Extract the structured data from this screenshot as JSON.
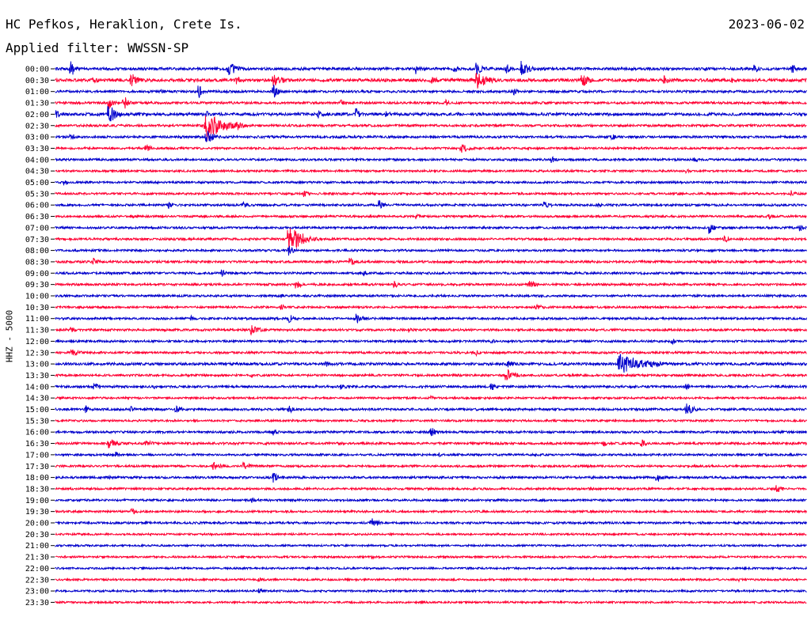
{
  "header": {
    "station": "HC Pefkos, Heraklion, Crete Is.",
    "date": "2023-06-02",
    "filter": "Applied filter: WWSSN-SP"
  },
  "chart_data": {
    "type": "line",
    "title": "HC Pefkos, Heraklion, Crete Is.",
    "ylabel": "HHZ - 5000",
    "colors": [
      "#0000cc",
      "#ff0033"
    ],
    "row_labels": [
      "00:00",
      "00:30",
      "01:00",
      "01:30",
      "02:00",
      "02:30",
      "03:00",
      "03:30",
      "04:00",
      "04:30",
      "05:00",
      "05:30",
      "06:00",
      "06:30",
      "07:00",
      "07:30",
      "08:00",
      "08:30",
      "09:00",
      "09:30",
      "10:00",
      "10:30",
      "11:00",
      "11:30",
      "12:00",
      "12:30",
      "13:00",
      "13:30",
      "14:00",
      "14:30",
      "15:00",
      "15:30",
      "16:00",
      "16:30",
      "17:00",
      "17:30",
      "18:00",
      "18:30",
      "19:00",
      "19:30",
      "20:00",
      "20:30",
      "21:00",
      "21:30",
      "22:00",
      "22:30",
      "23:00",
      "23:30"
    ],
    "rows": [
      {
        "noise": 0.22,
        "events": [
          [
            0.02,
            12,
            2
          ],
          [
            0.23,
            12,
            3
          ],
          [
            0.48,
            7,
            2
          ],
          [
            0.53,
            6,
            2
          ],
          [
            0.56,
            8,
            3
          ],
          [
            0.6,
            8,
            2
          ],
          [
            0.62,
            12,
            3
          ],
          [
            0.93,
            7,
            2
          ],
          [
            0.98,
            7,
            2
          ]
        ]
      },
      {
        "noise": 0.3,
        "events": [
          [
            0.05,
            5,
            3
          ],
          [
            0.1,
            11,
            3
          ],
          [
            0.24,
            6,
            3
          ],
          [
            0.29,
            9,
            4
          ],
          [
            0.5,
            6,
            3
          ],
          [
            0.56,
            12,
            5
          ],
          [
            0.7,
            11,
            3
          ],
          [
            0.81,
            6,
            3
          ],
          [
            0.9,
            5,
            2
          ]
        ]
      },
      {
        "noise": 0.15,
        "events": [
          [
            0.14,
            4,
            2
          ],
          [
            0.19,
            10,
            2
          ],
          [
            0.29,
            10,
            2
          ],
          [
            0.61,
            5,
            2
          ]
        ]
      },
      {
        "noise": 0.14,
        "events": [
          [
            0.07,
            10,
            2
          ],
          [
            0.09,
            12,
            2
          ],
          [
            0.38,
            5,
            2
          ],
          [
            0.52,
            4,
            2
          ]
        ]
      },
      {
        "noise": 0.25,
        "events": [
          [
            0.0,
            5,
            3
          ],
          [
            0.07,
            14,
            3
          ],
          [
            0.11,
            4,
            2
          ],
          [
            0.2,
            5,
            2
          ],
          [
            0.35,
            6,
            2
          ],
          [
            0.4,
            9,
            2
          ],
          [
            0.44,
            5,
            2
          ]
        ]
      },
      {
        "noise": 0.14,
        "events": [
          [
            0.2,
            22,
            6
          ],
          [
            0.24,
            8,
            3
          ]
        ]
      },
      {
        "noise": 0.14,
        "events": [
          [
            0.02,
            5,
            3
          ],
          [
            0.2,
            10,
            3
          ],
          [
            0.74,
            6,
            2
          ]
        ]
      },
      {
        "noise": 0.1,
        "events": [
          [
            0.12,
            5,
            3
          ],
          [
            0.54,
            6,
            4
          ],
          [
            0.59,
            4,
            3
          ]
        ]
      },
      {
        "noise": 0.1,
        "events": [
          [
            0.66,
            6,
            2
          ],
          [
            0.85,
            4,
            2
          ]
        ]
      },
      {
        "noise": 0.08,
        "events": [
          [
            0.84,
            3,
            2
          ]
        ]
      },
      {
        "noise": 0.1,
        "events": [
          [
            0.01,
            4,
            3
          ]
        ]
      },
      {
        "noise": 0.1,
        "events": [
          [
            0.33,
            5,
            2
          ],
          [
            0.98,
            5,
            2
          ]
        ]
      },
      {
        "noise": 0.12,
        "events": [
          [
            0.15,
            5,
            2
          ],
          [
            0.25,
            5,
            2
          ],
          [
            0.43,
            8,
            2
          ],
          [
            0.65,
            5,
            3
          ],
          [
            0.72,
            4,
            2
          ]
        ]
      },
      {
        "noise": 0.1,
        "events": [
          [
            0.1,
            3,
            2
          ],
          [
            0.48,
            4,
            3
          ],
          [
            0.95,
            4,
            3
          ]
        ]
      },
      {
        "noise": 0.12,
        "events": [
          [
            0.87,
            9,
            2
          ],
          [
            0.99,
            6,
            2
          ]
        ]
      },
      {
        "noise": 0.12,
        "events": [
          [
            0.31,
            22,
            5
          ],
          [
            0.89,
            5,
            3
          ]
        ]
      },
      {
        "noise": 0.1,
        "events": [
          [
            0.31,
            8,
            2
          ]
        ]
      },
      {
        "noise": 0.15,
        "events": [
          [
            0.05,
            5,
            3
          ],
          [
            0.39,
            6,
            4
          ]
        ]
      },
      {
        "noise": 0.12,
        "events": [
          [
            0.22,
            6,
            2
          ],
          [
            0.41,
            4,
            2
          ]
        ]
      },
      {
        "noise": 0.12,
        "events": [
          [
            0.32,
            7,
            2
          ],
          [
            0.45,
            6,
            2
          ],
          [
            0.63,
            6,
            3
          ]
        ]
      },
      {
        "noise": 0.1,
        "events": [
          [
            0.3,
            3,
            2
          ]
        ]
      },
      {
        "noise": 0.1,
        "events": [
          [
            0.3,
            4,
            2
          ],
          [
            0.64,
            5,
            3
          ]
        ]
      },
      {
        "noise": 0.12,
        "events": [
          [
            0.18,
            4,
            2
          ],
          [
            0.31,
            6,
            3
          ],
          [
            0.4,
            7,
            3
          ]
        ]
      },
      {
        "noise": 0.12,
        "events": [
          [
            0.02,
            4,
            2
          ],
          [
            0.26,
            7,
            4
          ],
          [
            0.47,
            4,
            2
          ]
        ]
      },
      {
        "noise": 0.1,
        "events": [
          [
            0.58,
            4,
            2
          ],
          [
            0.82,
            4,
            3
          ]
        ]
      },
      {
        "noise": 0.12,
        "events": [
          [
            0.02,
            5,
            4
          ],
          [
            0.56,
            4,
            2
          ]
        ]
      },
      {
        "noise": 0.2,
        "events": [
          [
            0.36,
            4,
            2
          ],
          [
            0.6,
            5,
            4
          ],
          [
            0.75,
            14,
            10
          ],
          [
            0.78,
            8,
            5
          ]
        ]
      },
      {
        "noise": 0.12,
        "events": [
          [
            0.26,
            4,
            2
          ],
          [
            0.6,
            12,
            3
          ]
        ]
      },
      {
        "noise": 0.14,
        "events": [
          [
            0.05,
            6,
            3
          ],
          [
            0.13,
            4,
            2
          ],
          [
            0.38,
            5,
            2
          ],
          [
            0.58,
            6,
            2
          ],
          [
            0.84,
            5,
            2
          ]
        ]
      },
      {
        "noise": 0.08,
        "events": [
          [
            0.5,
            3,
            2
          ]
        ]
      },
      {
        "noise": 0.14,
        "events": [
          [
            0.04,
            6,
            2
          ],
          [
            0.1,
            4,
            2
          ],
          [
            0.16,
            5,
            3
          ],
          [
            0.31,
            6,
            2
          ],
          [
            0.84,
            9,
            3
          ]
        ]
      },
      {
        "noise": 0.08,
        "events": [
          [
            0.5,
            2,
            2
          ]
        ]
      },
      {
        "noise": 0.12,
        "events": [
          [
            0.29,
            5,
            2
          ],
          [
            0.5,
            7,
            2
          ]
        ]
      },
      {
        "noise": 0.15,
        "events": [
          [
            0.07,
            7,
            4
          ],
          [
            0.12,
            5,
            3
          ],
          [
            0.73,
            5,
            2
          ],
          [
            0.78,
            6,
            2
          ]
        ]
      },
      {
        "noise": 0.1,
        "events": [
          [
            0.08,
            4,
            2
          ],
          [
            0.51,
            3,
            2
          ]
        ]
      },
      {
        "noise": 0.1,
        "events": [
          [
            0.21,
            6,
            3
          ],
          [
            0.25,
            6,
            3
          ]
        ]
      },
      {
        "noise": 0.14,
        "events": [
          [
            0.07,
            3,
            2
          ],
          [
            0.29,
            9,
            2
          ],
          [
            0.8,
            6,
            3
          ]
        ]
      },
      {
        "noise": 0.1,
        "events": [
          [
            0.96,
            5,
            3
          ]
        ]
      },
      {
        "noise": 0.1,
        "events": [
          [
            0.26,
            4,
            3
          ]
        ]
      },
      {
        "noise": 0.1,
        "events": [
          [
            0.1,
            6,
            2
          ]
        ]
      },
      {
        "noise": 0.12,
        "events": [
          [
            0.42,
            12,
            2
          ]
        ]
      },
      {
        "noise": 0.06,
        "events": []
      },
      {
        "noise": 0.05,
        "events": []
      },
      {
        "noise": 0.06,
        "events": [
          [
            0.42,
            3,
            2
          ]
        ]
      },
      {
        "noise": 0.06,
        "events": []
      },
      {
        "noise": 0.07,
        "events": [
          [
            0.27,
            3,
            2
          ],
          [
            0.91,
            3,
            2
          ]
        ]
      },
      {
        "noise": 0.07,
        "events": [
          [
            0.27,
            4,
            2
          ]
        ]
      },
      {
        "noise": 0.05,
        "events": []
      }
    ]
  }
}
